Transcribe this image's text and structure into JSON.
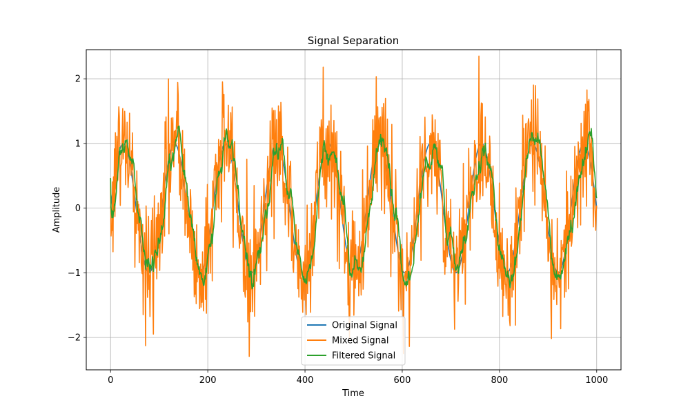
{
  "chart_data": {
    "type": "line",
    "title": "Signal Separation",
    "xlabel": "Time",
    "ylabel": "Amplitude",
    "xlim": [
      -50,
      1050
    ],
    "ylim": [
      -2.5,
      2.45
    ],
    "xticks": [
      0,
      200,
      400,
      600,
      800,
      1000
    ],
    "xtick_labels": [
      "0",
      "200",
      "400",
      "600",
      "800",
      "1000"
    ],
    "yticks": [
      -2,
      -1,
      0,
      1,
      2
    ],
    "ytick_labels": [
      "−2",
      "−1",
      "0",
      "1",
      "2"
    ],
    "grid": true,
    "legend_position": "lower-center",
    "series": [
      {
        "name": "Original Signal",
        "color": "#1f77b4",
        "description_of_values": "sine wave, amplitude 1, period ~105 time units, 1000 samples",
        "amplitude": 1,
        "cycles": 9.5,
        "n_points": 1000
      },
      {
        "name": "Mixed Signal",
        "color": "#ff7f0e",
        "amplitude": 1,
        "cycles": 9.5,
        "noise_std": 0.5,
        "n_points": 1000
      },
      {
        "name": "Filtered Signal",
        "color": "#2ca02c",
        "amplitude": 1,
        "cycles": 9.5,
        "smoothing_window": 10,
        "n_points": 1000
      }
    ]
  }
}
